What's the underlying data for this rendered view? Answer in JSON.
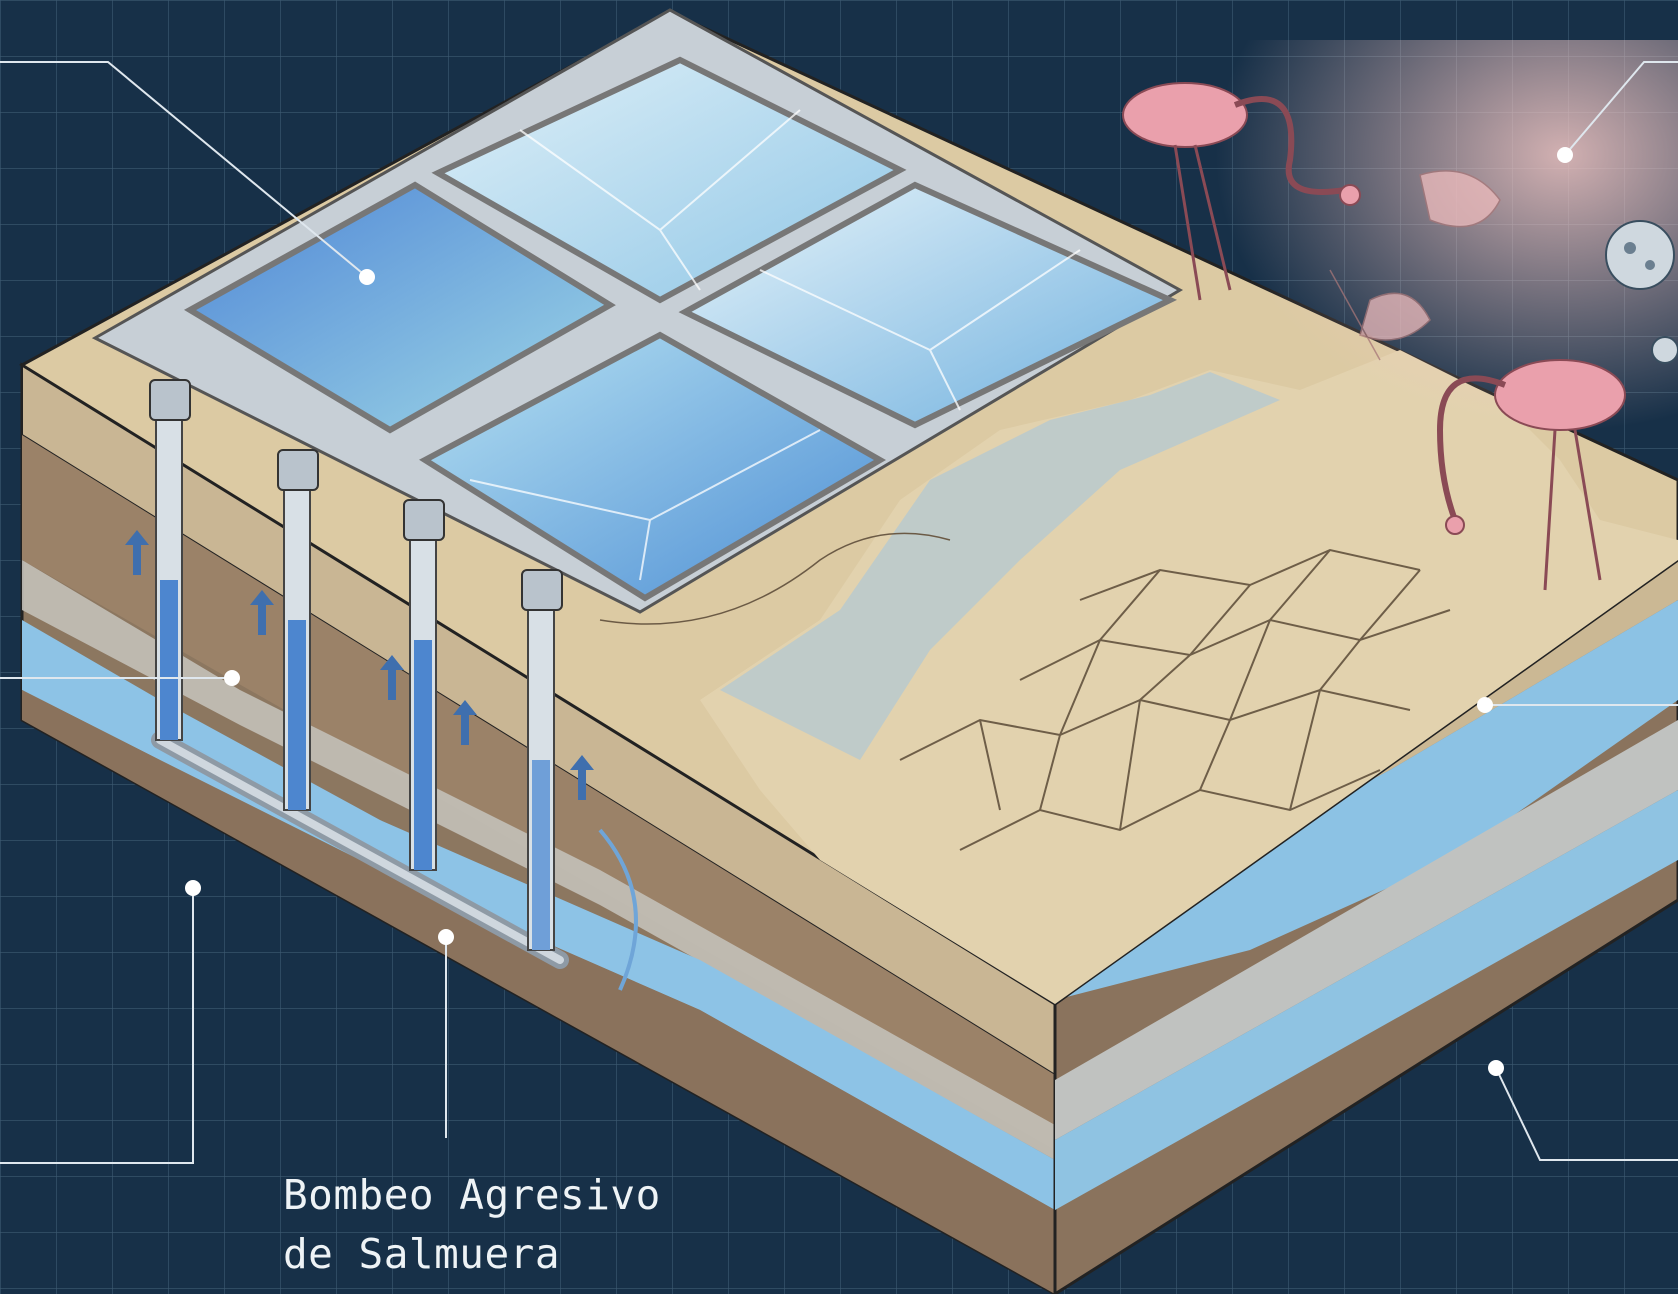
{
  "callouts": {
    "brine_pumping": {
      "lines": [
        "Bombeo Agresivo",
        "de Salmuera"
      ]
    }
  },
  "colors": {
    "background": "#173048",
    "grid": "#3d5b72",
    "leader": "#dfe7ee",
    "brine": "#7fb6e0",
    "soil": "#9c8468",
    "salt_crust": "#dcc9a4",
    "flamingo": "#e9a3ad"
  },
  "icons": [
    "evaporation-pond-icon",
    "extraction-well-icon",
    "flamingo-icon",
    "microbe-icon"
  ]
}
